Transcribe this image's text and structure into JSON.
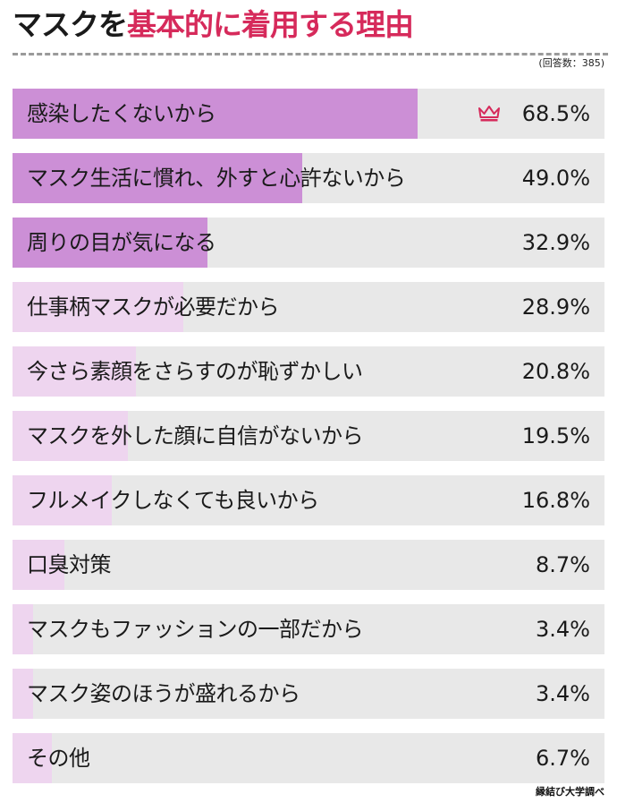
{
  "title_dark": "マスクを",
  "title_accent": "基本的に着用する理由",
  "note": "(回答数：385)",
  "source": "縁結び大学調べ",
  "colors": {
    "title_accent": "#d62a5b",
    "fill_top": "#cc8fd6",
    "fill_top3": "#cc8fd6",
    "fill_other": "#eed5ef",
    "track": "#e8e8e8",
    "crown": "#d62a5b"
  },
  "chart_data": {
    "type": "bar",
    "orientation": "horizontal",
    "title": "マスクを基本的に着用する理由",
    "unit": "%",
    "xlim": [
      0,
      100
    ],
    "categories": [
      "感染したくないから",
      "マスク生活に慣れ、外すと心許ないから",
      "周りの目が気になる",
      "仕事柄マスクが必要だから",
      "今さら素顔をさらすのが恥ずかしい",
      "マスクを外した顔に自信がないから",
      "フルメイクしなくても良いから",
      "口臭対策",
      "マスクもファッションの一部だから",
      "マスク姿のほうが盛れるから",
      "その他"
    ],
    "values": [
      68.5,
      49.0,
      32.9,
      28.9,
      20.8,
      19.5,
      16.8,
      8.7,
      3.4,
      3.4,
      6.7
    ],
    "value_labels": [
      "68.5%",
      "49.0%",
      "32.9%",
      "28.9%",
      "20.8%",
      "19.5%",
      "16.8%",
      "8.7%",
      "3.4%",
      "3.4%",
      "6.7%"
    ],
    "highlighted_count": 3,
    "top_marker_icon": "crown-icon"
  }
}
